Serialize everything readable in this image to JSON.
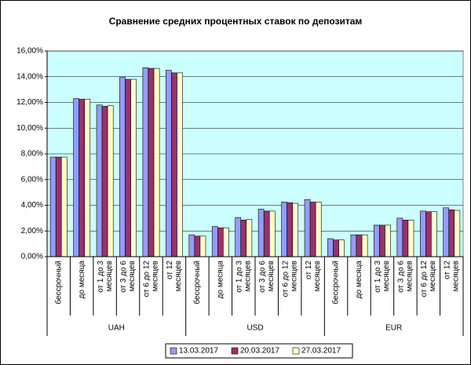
{
  "chart_data": {
    "type": "bar",
    "title": "Сравнение средних процентных ставок по депозитам",
    "categories": [
      [
        "бессрочный"
      ],
      [
        "до месяца"
      ],
      [
        "от 1 до 3",
        "месяцев"
      ],
      [
        "от 3 до 6",
        "месяцев"
      ],
      [
        "от 6 до 12",
        "месяцев"
      ],
      [
        "от 12",
        "месяцев"
      ],
      [
        "бессрочный"
      ],
      [
        "до месяца"
      ],
      [
        "от 1 до 3",
        "месяцев"
      ],
      [
        "от 3 до 6",
        "месяцев"
      ],
      [
        "от 6 до 12",
        "месяцев"
      ],
      [
        "от 12",
        "месяцев"
      ],
      [
        "бессрочный"
      ],
      [
        "до месяца"
      ],
      [
        "от 1 до 3",
        "месяцев"
      ],
      [
        "от 3 до 6",
        "месяцев"
      ],
      [
        "от 6 до 12",
        "месяцев"
      ],
      [
        "от 12",
        "месяцев"
      ]
    ],
    "category_groups": [
      "UAH",
      "USD",
      "EUR"
    ],
    "series": [
      {
        "name": "13.03.2017",
        "color": "#9999ff",
        "values": [
          7.75,
          12.3,
          11.8,
          13.95,
          14.7,
          14.5,
          1.7,
          2.35,
          3.05,
          3.7,
          4.25,
          4.45,
          1.4,
          1.7,
          2.45,
          3.0,
          3.55,
          3.8
        ]
      },
      {
        "name": "20.03.2017",
        "color": "#993366",
        "values": [
          7.75,
          12.25,
          11.7,
          13.8,
          14.65,
          14.3,
          1.6,
          2.25,
          2.85,
          3.55,
          4.2,
          4.25,
          1.3,
          1.7,
          2.45,
          2.85,
          3.5,
          3.65
        ]
      },
      {
        "name": "27.03.2017",
        "color": "#ffffcc",
        "values": [
          7.75,
          12.25,
          11.75,
          13.8,
          14.65,
          14.3,
          1.6,
          2.25,
          2.9,
          3.55,
          4.15,
          4.25,
          1.3,
          1.7,
          2.45,
          2.85,
          3.5,
          3.6
        ]
      }
    ],
    "ylim": [
      0,
      16
    ],
    "yticks": [
      {
        "value": 0,
        "label": "0,00%"
      },
      {
        "value": 2,
        "label": "2,00%"
      },
      {
        "value": 4,
        "label": "4,00%"
      },
      {
        "value": 6,
        "label": "6,00%"
      },
      {
        "value": 8,
        "label": "8,00%"
      },
      {
        "value": 10,
        "label": "10,00%"
      },
      {
        "value": 12,
        "label": "12,00%"
      },
      {
        "value": 14,
        "label": "14,00%"
      },
      {
        "value": 16,
        "label": "16,00%"
      }
    ],
    "grid": true,
    "legend": "bottom",
    "plot_background": "#ccffff"
  }
}
